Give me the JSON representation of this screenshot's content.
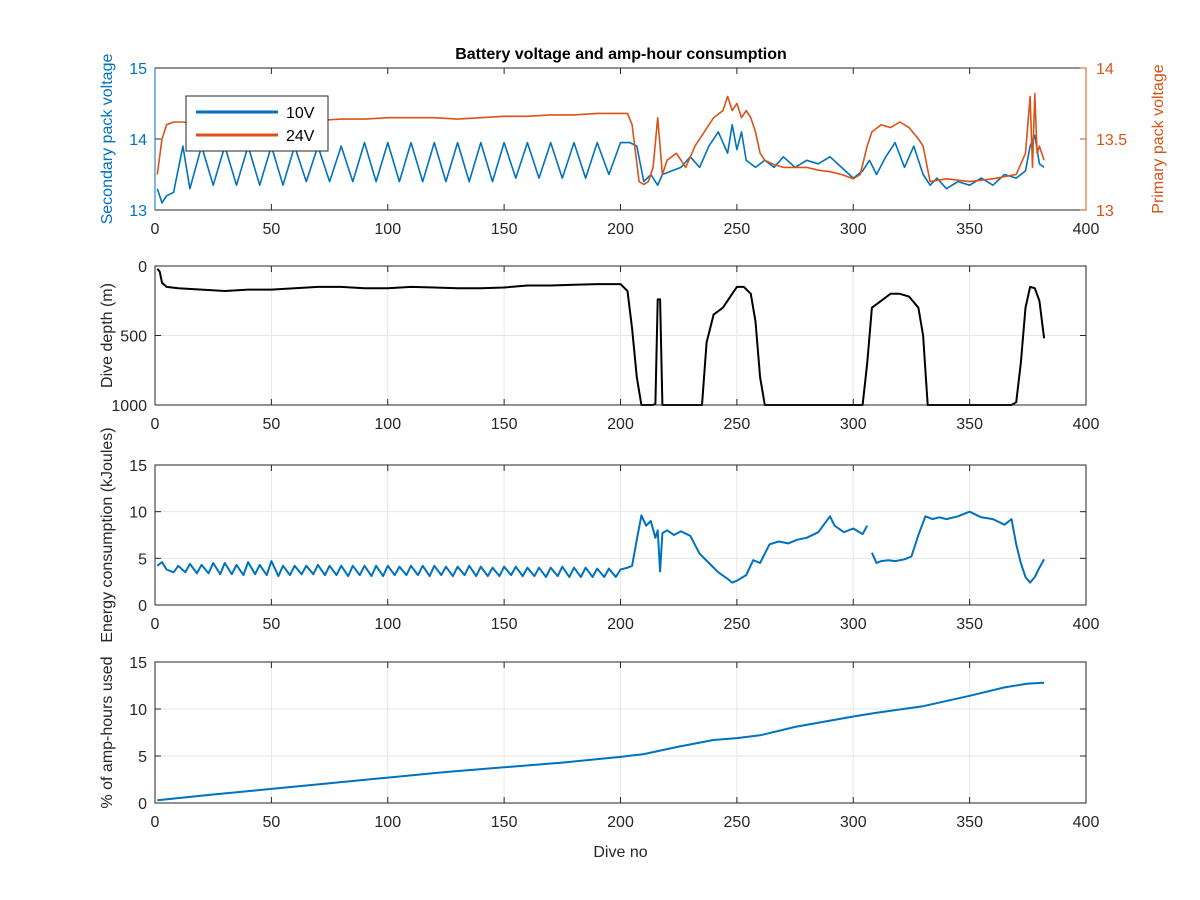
{
  "figure": {
    "title": "Battery voltage and amp-hour consumption",
    "colors": {
      "blue": "#0072BD",
      "orange": "#D95319",
      "black": "#000000",
      "grid": "#E6E6E6",
      "axis": "#262626"
    }
  },
  "chart_data": [
    {
      "type": "line",
      "title": "Battery voltage and amp-hour consumption",
      "xlabel": "",
      "xlim": [
        0,
        400
      ],
      "xticks": [
        "0",
        "50",
        "100",
        "150",
        "200",
        "250",
        "300",
        "350",
        "400"
      ],
      "ylabel": "Secondary pack voltage",
      "ylim": [
        13,
        15
      ],
      "yticks": [
        "13",
        "14",
        "15"
      ],
      "ylabel_right": "Primary pack voltage",
      "ylim_right": [
        13,
        14
      ],
      "yticks_right": [
        "13",
        "13.5",
        "14"
      ],
      "grid": false,
      "legend": {
        "position": "top-left",
        "entries": [
          "10V",
          "24V"
        ]
      },
      "series": [
        {
          "name": "10V",
          "axis": "left",
          "color": "#0072BD",
          "x": [
            1,
            3,
            5,
            8,
            12,
            15,
            20,
            25,
            30,
            35,
            40,
            45,
            50,
            55,
            60,
            65,
            70,
            75,
            80,
            85,
            90,
            95,
            100,
            105,
            110,
            115,
            120,
            125,
            130,
            135,
            140,
            145,
            150,
            155,
            160,
            165,
            170,
            175,
            180,
            185,
            190,
            195,
            200,
            204,
            207,
            210,
            213,
            216,
            218,
            222,
            226,
            230,
            234,
            238,
            242,
            246,
            248,
            250,
            252,
            254,
            258,
            262,
            266,
            270,
            275,
            280,
            285,
            290,
            295,
            300,
            304,
            307,
            310,
            314,
            318,
            322,
            326,
            330,
            333,
            336,
            340,
            345,
            350,
            355,
            360,
            365,
            370,
            374,
            376,
            378,
            380,
            382
          ],
          "values": [
            13.3,
            13.1,
            13.2,
            13.25,
            13.9,
            13.3,
            13.9,
            13.35,
            13.9,
            13.35,
            13.9,
            13.35,
            13.9,
            13.35,
            13.9,
            13.4,
            13.9,
            13.4,
            13.9,
            13.4,
            13.95,
            13.4,
            13.95,
            13.4,
            13.95,
            13.4,
            13.95,
            13.4,
            13.95,
            13.4,
            13.95,
            13.4,
            13.95,
            13.45,
            13.95,
            13.45,
            13.95,
            13.45,
            13.95,
            13.45,
            13.95,
            13.5,
            13.95,
            13.95,
            13.9,
            13.4,
            13.5,
            13.35,
            13.5,
            13.55,
            13.6,
            13.75,
            13.6,
            13.9,
            14.1,
            13.8,
            14.2,
            13.85,
            14.1,
            13.7,
            13.6,
            13.7,
            13.6,
            13.75,
            13.6,
            13.7,
            13.65,
            13.75,
            13.6,
            13.45,
            13.55,
            13.7,
            13.5,
            13.75,
            13.95,
            13.6,
            13.9,
            13.5,
            13.35,
            13.45,
            13.3,
            13.4,
            13.35,
            13.45,
            13.35,
            13.5,
            13.45,
            13.55,
            13.9,
            14.05,
            13.65,
            13.6
          ]
        },
        {
          "name": "24V",
          "axis": "right",
          "color": "#D95319",
          "x": [
            1,
            3,
            5,
            8,
            12,
            20,
            30,
            40,
            50,
            60,
            70,
            80,
            90,
            100,
            110,
            120,
            130,
            140,
            150,
            160,
            170,
            180,
            190,
            200,
            203,
            205,
            208,
            210,
            212,
            214,
            216,
            218,
            220,
            224,
            228,
            232,
            236,
            240,
            244,
            246,
            248,
            250,
            252,
            254,
            256,
            258,
            260,
            262,
            266,
            270,
            275,
            280,
            285,
            290,
            295,
            300,
            303,
            306,
            308,
            312,
            316,
            320,
            324,
            328,
            330,
            333,
            340,
            350,
            360,
            370,
            374,
            376,
            377,
            378,
            379,
            380,
            382
          ],
          "values": [
            13.25,
            13.5,
            13.6,
            13.62,
            13.62,
            13.6,
            13.61,
            13.62,
            13.62,
            13.62,
            13.63,
            13.64,
            13.64,
            13.65,
            13.65,
            13.65,
            13.64,
            13.65,
            13.66,
            13.66,
            13.67,
            13.67,
            13.68,
            13.68,
            13.68,
            13.6,
            13.2,
            13.18,
            13.2,
            13.3,
            13.65,
            13.25,
            13.35,
            13.4,
            13.3,
            13.45,
            13.55,
            13.65,
            13.7,
            13.8,
            13.7,
            13.75,
            13.65,
            13.7,
            13.65,
            13.55,
            13.4,
            13.35,
            13.32,
            13.3,
            13.3,
            13.3,
            13.28,
            13.27,
            13.25,
            13.22,
            13.25,
            13.45,
            13.55,
            13.6,
            13.58,
            13.62,
            13.58,
            13.5,
            13.45,
            13.2,
            13.22,
            13.2,
            13.22,
            13.25,
            13.4,
            13.8,
            13.3,
            13.82,
            13.4,
            13.45,
            13.35
          ]
        }
      ]
    },
    {
      "type": "line",
      "title": "",
      "xlabel": "",
      "xlim": [
        0,
        400
      ],
      "xticks": [
        "0",
        "50",
        "100",
        "150",
        "200",
        "250",
        "300",
        "350",
        "400"
      ],
      "ylabel": "Dive depth (m)",
      "ylim": [
        0,
        1000
      ],
      "y_reversed": true,
      "yticks": [
        "0",
        "500",
        "1000"
      ],
      "grid": true,
      "series": [
        {
          "color": "#000000",
          "x": [
            1,
            2,
            3,
            5,
            10,
            20,
            30,
            40,
            50,
            60,
            70,
            80,
            90,
            100,
            110,
            120,
            130,
            140,
            150,
            160,
            170,
            180,
            190,
            200,
            203,
            205,
            207,
            209,
            210,
            212,
            214,
            215,
            216,
            217,
            218,
            219,
            220,
            223,
            225,
            230,
            235,
            237,
            240,
            244,
            248,
            250,
            253,
            256,
            258,
            260,
            262,
            264,
            270,
            280,
            290,
            300,
            304,
            306,
            308,
            312,
            316,
            320,
            324,
            328,
            330,
            332,
            340,
            350,
            360,
            368,
            370,
            372,
            374,
            376,
            378,
            380,
            382
          ],
          "values": [
            20,
            40,
            120,
            150,
            160,
            170,
            180,
            170,
            170,
            160,
            150,
            150,
            160,
            160,
            150,
            155,
            160,
            160,
            155,
            140,
            140,
            135,
            130,
            130,
            180,
            450,
            800,
            1000,
            1000,
            1000,
            1000,
            990,
            240,
            240,
            1000,
            1000,
            1000,
            1000,
            1000,
            1000,
            1000,
            550,
            350,
            300,
            200,
            150,
            150,
            200,
            400,
            800,
            1000,
            1000,
            1000,
            1000,
            1000,
            1000,
            1000,
            700,
            300,
            250,
            200,
            200,
            220,
            300,
            500,
            1000,
            1000,
            1000,
            1000,
            1000,
            980,
            700,
            300,
            150,
            160,
            250,
            520
          ]
        }
      ]
    },
    {
      "type": "line",
      "title": "",
      "xlabel": "",
      "xlim": [
        0,
        400
      ],
      "xticks": [
        "0",
        "50",
        "100",
        "150",
        "200",
        "250",
        "300",
        "350",
        "400"
      ],
      "ylabel": "Energy consumption (kJoules)",
      "ylim": [
        0,
        15
      ],
      "yticks": [
        "0",
        "5",
        "10",
        "15"
      ],
      "grid": true,
      "series": [
        {
          "color": "#0072BD",
          "segments": [
            {
              "x": [
                1,
                3,
                5,
                8,
                10,
                13,
                15,
                18,
                20,
                23,
                25,
                28,
                30,
                33,
                35,
                38,
                40,
                43,
                45,
                48,
                50,
                53,
                55,
                58,
                60,
                63,
                65,
                68,
                70,
                73,
                75,
                78,
                80,
                83,
                85,
                88,
                90,
                93,
                95,
                98,
                100,
                103,
                105,
                108,
                110,
                113,
                115,
                118,
                120,
                123,
                125,
                128,
                130,
                133,
                135,
                138,
                140,
                143,
                145,
                148,
                150,
                153,
                155,
                158,
                160,
                163,
                165,
                168,
                170,
                173,
                175,
                178,
                180,
                183,
                185,
                188,
                190,
                193,
                195,
                198,
                200,
                203,
                205,
                207,
                209,
                211,
                213,
                215,
                216,
                217,
                218,
                220,
                223,
                226,
                230,
                234,
                238,
                242,
                246,
                248,
                250,
                252,
                254,
                257,
                260,
                264,
                268,
                272,
                276,
                280,
                285,
                290,
                292,
                296,
                300,
                304,
                306
              ],
              "values": [
                4.2,
                4.6,
                3.8,
                3.5,
                4.2,
                3.5,
                4.4,
                3.4,
                4.3,
                3.4,
                4.5,
                3.3,
                4.5,
                3.3,
                4.3,
                3.2,
                4.6,
                3.3,
                4.3,
                3.2,
                4.7,
                3.1,
                4.2,
                3.2,
                4.2,
                3.3,
                4.2,
                3.3,
                4.3,
                3.2,
                4.2,
                3.2,
                4.2,
                3.1,
                4.2,
                3.2,
                4.2,
                3.1,
                4.2,
                3.1,
                4.2,
                3.2,
                4.1,
                3.2,
                4.2,
                3.2,
                4.2,
                3.1,
                4.2,
                3.2,
                4.1,
                3.1,
                4.1,
                3.2,
                4.2,
                3.1,
                4.1,
                3.1,
                4.0,
                3.1,
                4.1,
                3.2,
                4.1,
                3.1,
                4.0,
                3.1,
                4.0,
                3.0,
                4.0,
                3.1,
                4.1,
                3.0,
                4.0,
                3.0,
                4.0,
                3.0,
                3.9,
                3.0,
                3.9,
                3.0,
                3.8,
                4.0,
                4.2,
                7.0,
                9.6,
                8.5,
                9.0,
                7.2,
                8.0,
                3.6,
                7.7,
                8.0,
                7.5,
                7.9,
                7.4,
                5.5,
                4.5,
                3.5,
                2.8,
                2.4,
                2.6,
                2.9,
                3.2,
                4.8,
                4.5,
                6.5,
                6.8,
                6.6,
                7.0,
                7.2,
                7.8,
                9.5,
                8.5,
                7.8,
                8.2,
                7.6,
                8.5
              ]
            },
            {
              "x": [
                308,
                310,
                312,
                315,
                318,
                322,
                325,
                328,
                331,
                334,
                337,
                340,
                345,
                350,
                355,
                360,
                365,
                368,
                370,
                372,
                374,
                376,
                378,
                380,
                382
              ],
              "values": [
                5.6,
                4.5,
                4.7,
                4.8,
                4.7,
                4.9,
                5.2,
                7.5,
                9.5,
                9.2,
                9.4,
                9.2,
                9.5,
                10.0,
                9.4,
                9.2,
                8.6,
                9.2,
                6.5,
                4.5,
                3.0,
                2.4,
                3.0,
                4.0,
                4.9
              ]
            }
          ]
        }
      ]
    },
    {
      "type": "line",
      "title": "",
      "xlabel": "Dive no",
      "xlim": [
        0,
        400
      ],
      "xticks": [
        "0",
        "50",
        "100",
        "150",
        "200",
        "250",
        "300",
        "350",
        "400"
      ],
      "ylabel": "% of amp-hours used",
      "ylim": [
        0,
        15
      ],
      "yticks": [
        "0",
        "5",
        "10",
        "15"
      ],
      "grid": true,
      "series": [
        {
          "color": "#0072BD",
          "x": [
            1,
            25,
            50,
            75,
            100,
            125,
            150,
            175,
            200,
            210,
            225,
            240,
            250,
            260,
            275,
            300,
            310,
            330,
            350,
            365,
            375,
            382
          ],
          "values": [
            0.3,
            0.9,
            1.5,
            2.1,
            2.7,
            3.3,
            3.8,
            4.3,
            4.9,
            5.2,
            6.0,
            6.7,
            6.9,
            7.2,
            8.1,
            9.2,
            9.6,
            10.3,
            11.4,
            12.3,
            12.7,
            12.8
          ]
        }
      ]
    }
  ]
}
